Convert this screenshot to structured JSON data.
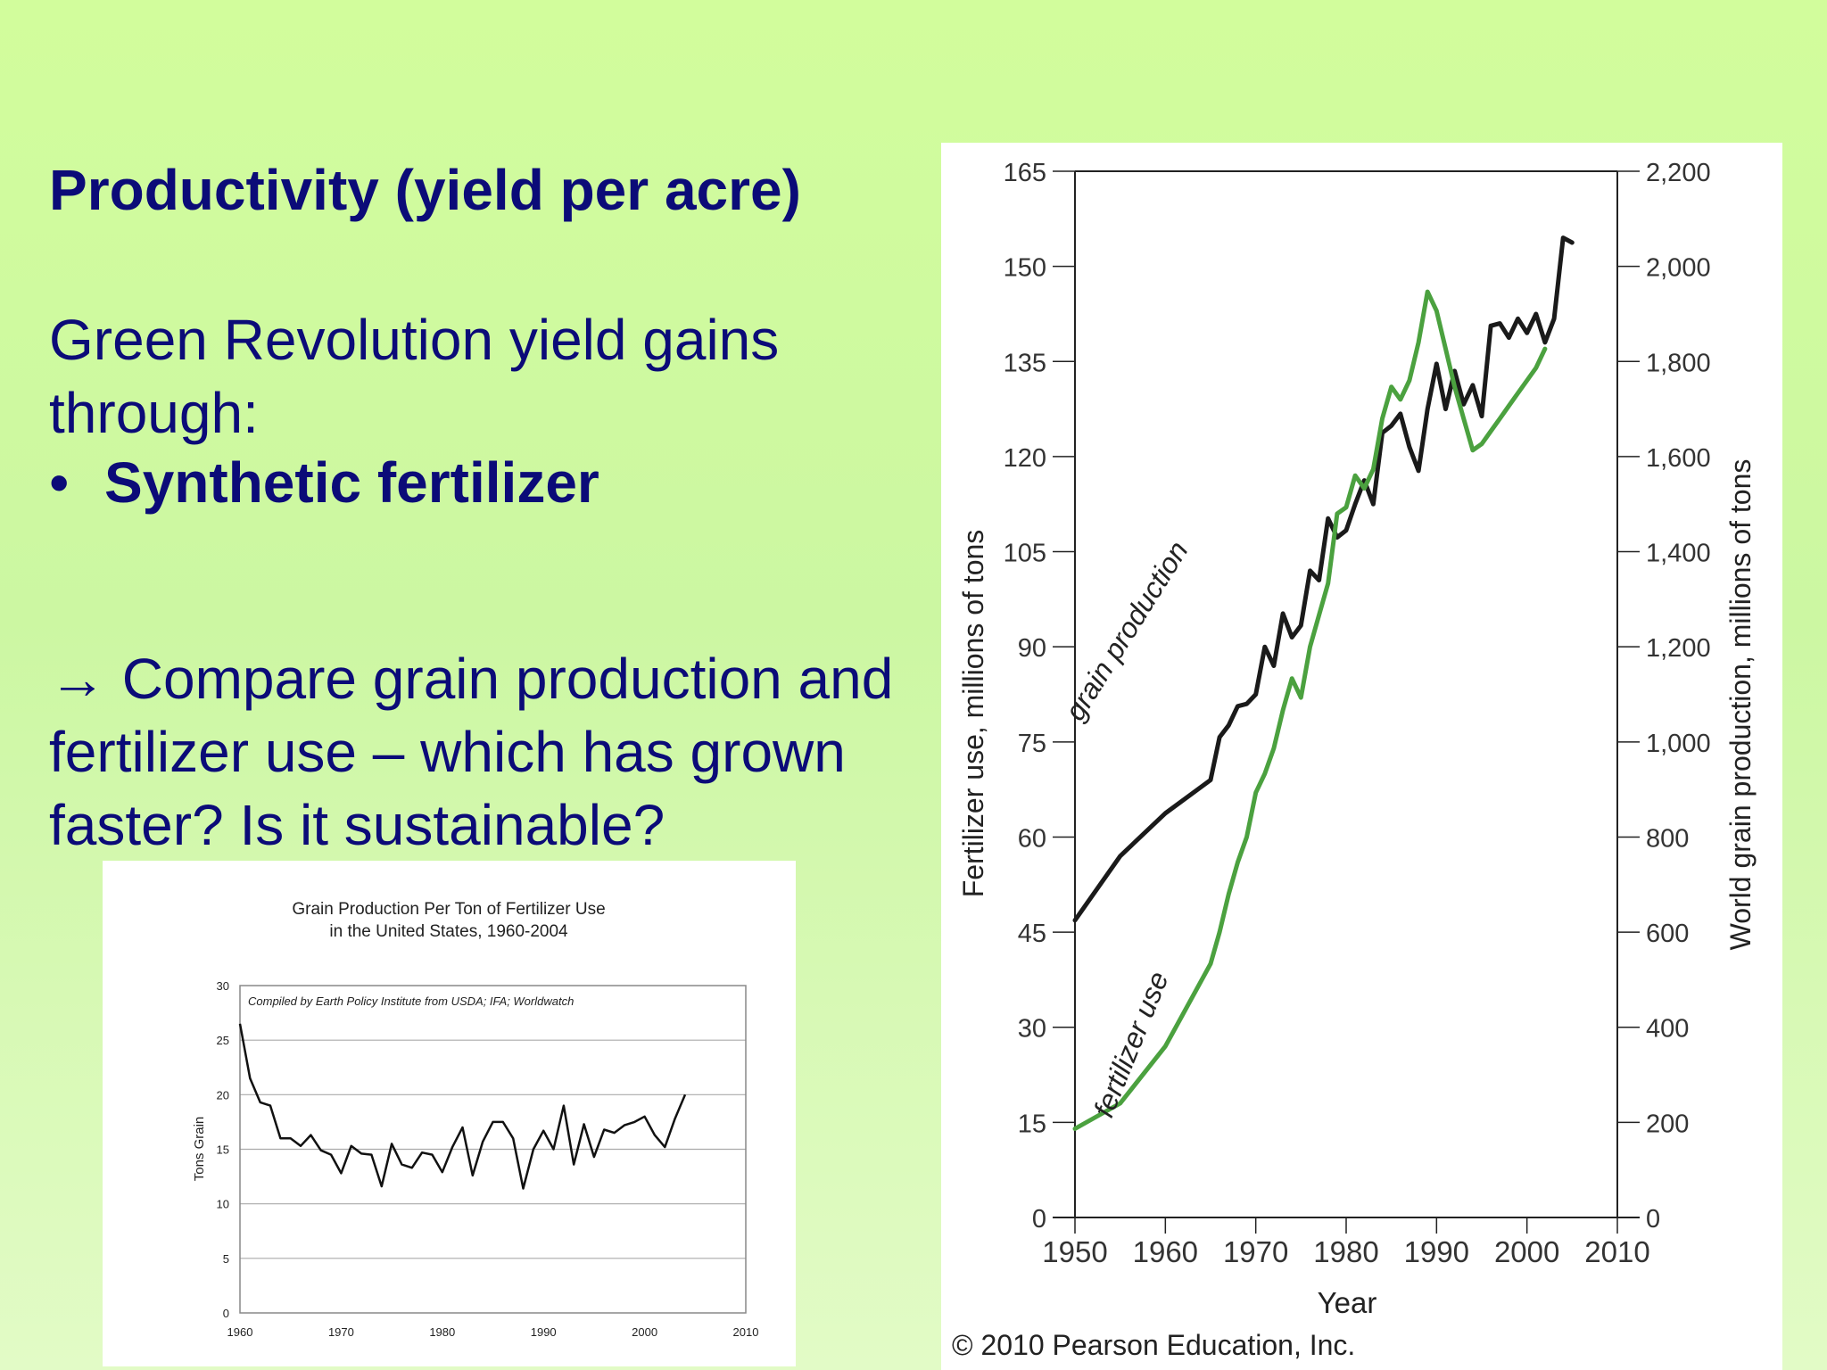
{
  "slide": {
    "heading": "Productivity (yield per acre)",
    "intro": "Green Revolution yield gains through:",
    "bullet_marker": "•",
    "bullet": "Synthetic fertilizer",
    "question": "→ Compare grain production and fertilizer use – which has grown faster? Is it sustainable?",
    "text_color": "#0b0b78"
  },
  "chart_data": [
    {
      "type": "line",
      "title": "Grain Production Per Ton of Fertilizer Use",
      "subtitle": "in the United States, 1960-2004",
      "annotation": "Compiled by Earth Policy Institute from  USDA; IFA; Worldwatch",
      "ylabel": "Tons Grain",
      "xlabel": "",
      "xlim": [
        1960,
        2010
      ],
      "ylim": [
        0,
        30
      ],
      "x_ticks": [
        1960,
        1970,
        1980,
        1990,
        2000,
        2010
      ],
      "y_ticks": [
        0,
        5,
        10,
        15,
        20,
        25,
        30
      ],
      "grid": true,
      "series": [
        {
          "color": "#111111",
          "x": [
            1960,
            1961,
            1962,
            1963,
            1964,
            1965,
            1966,
            1967,
            1968,
            1969,
            1970,
            1971,
            1972,
            1973,
            1974,
            1975,
            1976,
            1977,
            1978,
            1979,
            1980,
            1981,
            1982,
            1983,
            1984,
            1985,
            1986,
            1987,
            1988,
            1989,
            1990,
            1991,
            1992,
            1993,
            1994,
            1995,
            1996,
            1997,
            1998,
            1999,
            2000,
            2001,
            2002,
            2003,
            2004
          ],
          "values": [
            26.5,
            21.5,
            19.3,
            19.0,
            16.0,
            16.0,
            15.3,
            16.3,
            14.9,
            14.5,
            12.8,
            15.3,
            14.6,
            14.5,
            11.6,
            15.5,
            13.6,
            13.3,
            14.7,
            14.5,
            12.9,
            15.2,
            17.0,
            12.6,
            15.7,
            17.5,
            17.5,
            16.0,
            11.4,
            15.0,
            16.7,
            15.0,
            19.0,
            13.6,
            17.3,
            14.3,
            16.8,
            16.5,
            17.2,
            17.5,
            18.0,
            16.3,
            15.2,
            17.8,
            20.0
          ]
        }
      ]
    },
    {
      "type": "line",
      "title": "",
      "xlabel": "Year",
      "ylabel_left": "Fertilizer use, millions of tons",
      "ylabel_right": "World grain production, millions of tons",
      "xlim": [
        1950,
        2010
      ],
      "ylim_left": [
        0,
        165
      ],
      "ylim_right": [
        0,
        2200
      ],
      "x_ticks": [
        1950,
        1960,
        1970,
        1980,
        1990,
        2000,
        2010
      ],
      "y_ticks_left": [
        0,
        15,
        30,
        45,
        60,
        75,
        90,
        105,
        120,
        135,
        150,
        165
      ],
      "y_ticks_right": [
        "0",
        "200",
        "400",
        "600",
        "800",
        "1,000",
        "1,200",
        "1,400",
        "1,600",
        "1,800",
        "2,000",
        "2,200"
      ],
      "credit": "© 2010 Pearson Education, Inc.",
      "series": [
        {
          "name": "grain production",
          "axis": "right",
          "color": "#1a1a1a",
          "x": [
            1950,
            1955,
            1960,
            1965,
            1966,
            1967,
            1968,
            1969,
            1970,
            1971,
            1972,
            1973,
            1974,
            1975,
            1976,
            1977,
            1978,
            1979,
            1980,
            1981,
            1982,
            1983,
            1984,
            1985,
            1986,
            1987,
            1988,
            1989,
            1990,
            1991,
            1992,
            1993,
            1994,
            1995,
            1996,
            1997,
            1998,
            1999,
            2000,
            2001,
            2002,
            2003,
            2004,
            2005
          ],
          "values": [
            625,
            760,
            850,
            920,
            1010,
            1035,
            1075,
            1080,
            1100,
            1200,
            1160,
            1270,
            1220,
            1245,
            1360,
            1340,
            1470,
            1430,
            1445,
            1500,
            1550,
            1500,
            1650,
            1665,
            1690,
            1620,
            1570,
            1700,
            1795,
            1700,
            1780,
            1710,
            1750,
            1685,
            1875,
            1880,
            1850,
            1890,
            1860,
            1900,
            1840,
            1890,
            2060,
            2050
          ]
        },
        {
          "name": "fertilizer use",
          "axis": "left",
          "color": "#4ba13f",
          "x": [
            1950,
            1955,
            1960,
            1965,
            1966,
            1967,
            1968,
            1969,
            1970,
            1971,
            1972,
            1973,
            1974,
            1975,
            1976,
            1977,
            1978,
            1979,
            1980,
            1981,
            1982,
            1983,
            1984,
            1985,
            1986,
            1987,
            1988,
            1989,
            1990,
            1991,
            1992,
            1993,
            1994,
            1995,
            1996,
            1997,
            1998,
            1999,
            2000,
            2001,
            2002
          ],
          "values": [
            14,
            18,
            27,
            40,
            45,
            51,
            56,
            60,
            67,
            70,
            74,
            80,
            85,
            82,
            90,
            95,
            100,
            111,
            112,
            117,
            115,
            118,
            126,
            131,
            129,
            132,
            138,
            146,
            143,
            137,
            131,
            126,
            121,
            122,
            124,
            126,
            128,
            130,
            132,
            134,
            137
          ]
        }
      ]
    }
  ]
}
